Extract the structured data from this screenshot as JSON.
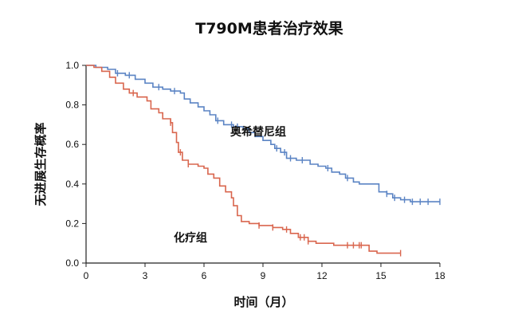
{
  "chart_data": {
    "type": "line",
    "subtype": "kaplan-meier step curves with censor ticks",
    "title": "T790M患者治疗效果",
    "xlabel": "时间（月）",
    "ylabel": "无进展生存概率",
    "xlim": [
      0,
      18
    ],
    "ylim": [
      0,
      1
    ],
    "x_ticks": [
      0,
      3,
      6,
      9,
      12,
      15,
      18
    ],
    "x_tick_labels": [
      "0",
      "3",
      "6",
      "9",
      "12",
      "15",
      "18"
    ],
    "y_ticks": [
      0,
      0.2,
      0.4,
      0.6,
      0.8,
      1.0
    ],
    "y_tick_labels": [
      "0.0",
      "0.2",
      "0.4",
      "0.6",
      "0.8",
      "1.0"
    ],
    "grid": false,
    "series": [
      {
        "name": "奥希替尼组",
        "color": "#5b84c4",
        "points": [
          [
            0,
            1.0
          ],
          [
            0.5,
            0.99
          ],
          [
            1.1,
            0.98
          ],
          [
            1.5,
            0.96
          ],
          [
            2.0,
            0.95
          ],
          [
            2.5,
            0.93
          ],
          [
            3.0,
            0.91
          ],
          [
            3.4,
            0.89
          ],
          [
            3.9,
            0.88
          ],
          [
            4.3,
            0.87
          ],
          [
            4.8,
            0.86
          ],
          [
            5.0,
            0.83
          ],
          [
            5.3,
            0.81
          ],
          [
            5.7,
            0.79
          ],
          [
            6.0,
            0.77
          ],
          [
            6.3,
            0.75
          ],
          [
            6.6,
            0.72
          ],
          [
            7.0,
            0.7
          ],
          [
            7.5,
            0.69
          ],
          [
            8.0,
            0.68
          ],
          [
            8.3,
            0.66
          ],
          [
            8.6,
            0.64
          ],
          [
            9.0,
            0.62
          ],
          [
            9.4,
            0.6
          ],
          [
            9.6,
            0.58
          ],
          [
            9.9,
            0.56
          ],
          [
            10.2,
            0.53
          ],
          [
            10.7,
            0.52
          ],
          [
            11.4,
            0.5
          ],
          [
            11.8,
            0.49
          ],
          [
            12.2,
            0.48
          ],
          [
            12.5,
            0.46
          ],
          [
            12.9,
            0.45
          ],
          [
            13.2,
            0.43
          ],
          [
            13.6,
            0.41
          ],
          [
            13.9,
            0.4
          ],
          [
            14.5,
            0.4
          ],
          [
            14.9,
            0.36
          ],
          [
            15.3,
            0.35
          ],
          [
            15.6,
            0.33
          ],
          [
            16.0,
            0.32
          ],
          [
            16.5,
            0.31
          ],
          [
            18.0,
            0.31
          ]
        ],
        "censor_x": [
          1.6,
          2.2,
          3.7,
          4.5,
          6.7,
          7.4,
          7.7,
          9.7,
          10.1,
          10.4,
          11.0,
          12.3,
          13.3,
          15.3,
          15.7,
          16.2,
          16.6,
          17.0,
          17.4,
          18.0
        ]
      },
      {
        "name": "化疗组",
        "color": "#d9664e",
        "points": [
          [
            0,
            1.0
          ],
          [
            0.4,
            0.99
          ],
          [
            0.8,
            0.97
          ],
          [
            1.2,
            0.94
          ],
          [
            1.5,
            0.91
          ],
          [
            1.9,
            0.88
          ],
          [
            2.2,
            0.86
          ],
          [
            2.6,
            0.84
          ],
          [
            3.1,
            0.82
          ],
          [
            3.3,
            0.78
          ],
          [
            3.7,
            0.76
          ],
          [
            3.9,
            0.73
          ],
          [
            4.3,
            0.71
          ],
          [
            4.4,
            0.66
          ],
          [
            4.6,
            0.61
          ],
          [
            4.7,
            0.56
          ],
          [
            4.9,
            0.52
          ],
          [
            5.2,
            0.5
          ],
          [
            5.7,
            0.49
          ],
          [
            6.0,
            0.48
          ],
          [
            6.2,
            0.45
          ],
          [
            6.5,
            0.43
          ],
          [
            6.8,
            0.39
          ],
          [
            7.1,
            0.36
          ],
          [
            7.4,
            0.33
          ],
          [
            7.5,
            0.29
          ],
          [
            7.7,
            0.24
          ],
          [
            7.9,
            0.21
          ],
          [
            8.3,
            0.2
          ],
          [
            8.8,
            0.19
          ],
          [
            9.5,
            0.18
          ],
          [
            10.0,
            0.17
          ],
          [
            10.4,
            0.15
          ],
          [
            10.8,
            0.13
          ],
          [
            11.3,
            0.11
          ],
          [
            11.7,
            0.1
          ],
          [
            12.6,
            0.09
          ],
          [
            14.2,
            0.09
          ],
          [
            14.4,
            0.06
          ],
          [
            14.8,
            0.05
          ],
          [
            16.0,
            0.05
          ]
        ],
        "censor_x": [
          2.4,
          4.3,
          4.8,
          5.2,
          8.8,
          9.5,
          10.2,
          10.9,
          11.1,
          11.3,
          13.3,
          13.6,
          13.9,
          14.0,
          16.0
        ]
      }
    ]
  }
}
